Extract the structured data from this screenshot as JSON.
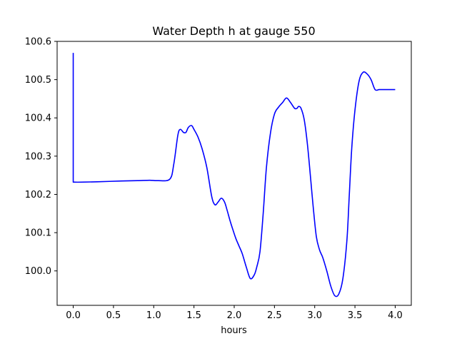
{
  "chart_data": {
    "type": "line",
    "title": "Water Depth h at gauge 550",
    "xlabel": "hours",
    "ylabel": "",
    "xlim": [
      -0.2,
      4.2
    ],
    "ylim": [
      99.91,
      100.6
    ],
    "x_ticks": [
      0.0,
      0.5,
      1.0,
      1.5,
      2.0,
      2.5,
      3.0,
      3.5,
      4.0
    ],
    "x_tick_labels": [
      "0.0",
      "0.5",
      "1.0",
      "1.5",
      "2.0",
      "2.5",
      "3.0",
      "3.5",
      "4.0"
    ],
    "y_ticks": [
      100.0,
      100.1,
      100.2,
      100.3,
      100.4,
      100.5,
      100.6
    ],
    "y_tick_labels": [
      "100.0",
      "100.1",
      "100.2",
      "100.3",
      "100.4",
      "100.5",
      "100.6"
    ],
    "grid": false,
    "colors": {
      "line": "#0000ff",
      "axes": "#000000",
      "background": "#ffffff"
    },
    "series": [
      {
        "color": "#0000ff",
        "x": [
          0.0,
          0.0,
          0.0,
          0.1,
          0.3,
          0.6,
          0.8,
          0.95,
          1.05,
          1.2,
          1.25,
          1.3,
          1.33,
          1.37,
          1.4,
          1.43,
          1.47,
          1.5,
          1.55,
          1.6,
          1.66,
          1.72,
          1.76,
          1.8,
          1.84,
          1.88,
          1.91,
          1.95,
          1.98,
          2.02,
          2.06,
          2.1,
          2.15,
          2.2,
          2.25,
          2.28,
          2.32,
          2.36,
          2.4,
          2.45,
          2.5,
          2.55,
          2.6,
          2.65,
          2.7,
          2.75,
          2.78,
          2.8,
          2.83,
          2.87,
          2.91,
          2.95,
          2.98,
          3.02,
          3.06,
          3.1,
          3.15,
          3.2,
          3.25,
          3.3,
          3.35,
          3.4,
          3.43,
          3.46,
          3.5,
          3.55,
          3.6,
          3.65,
          3.7,
          3.75,
          3.8,
          3.85,
          3.88,
          3.92,
          3.96,
          4.0
        ],
        "y": [
          100.57,
          100.232,
          100.232,
          100.232,
          100.233,
          100.235,
          100.236,
          100.237,
          100.236,
          100.24,
          100.28,
          100.355,
          100.37,
          100.362,
          100.362,
          100.375,
          100.38,
          100.37,
          100.35,
          100.32,
          100.27,
          100.195,
          100.173,
          100.18,
          100.19,
          100.18,
          100.16,
          100.13,
          100.11,
          100.085,
          100.065,
          100.045,
          100.01,
          99.98,
          99.99,
          100.01,
          100.05,
          100.15,
          100.27,
          100.36,
          100.41,
          100.428,
          100.44,
          100.452,
          100.44,
          100.425,
          100.425,
          100.43,
          100.425,
          100.395,
          100.33,
          100.24,
          100.17,
          100.09,
          100.055,
          100.035,
          100.0,
          99.96,
          99.935,
          99.94,
          99.98,
          100.08,
          100.2,
          100.32,
          100.42,
          100.495,
          100.519,
          100.515,
          100.5,
          100.474,
          100.474,
          100.474,
          100.474,
          100.474,
          100.474,
          100.474
        ]
      }
    ]
  }
}
